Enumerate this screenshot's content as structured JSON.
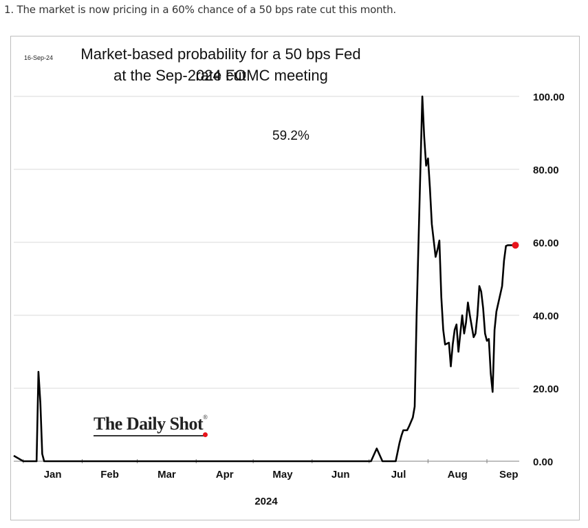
{
  "caption": "1. The market is now pricing in a 60% chance of a 50 bps rate cut this month.",
  "chart_data": {
    "type": "line",
    "date_stamp": "16-Sep-24",
    "title_lines": [
      "Market-based probability for a 50 bps Fed rate cut",
      "at the Sep-2024 FOMC meeting"
    ],
    "annotation": "59.2%",
    "watermark": "The Daily Shot",
    "xlabel": "2024",
    "x_tick_labels": [
      "Jan",
      "Feb",
      "Mar",
      "Apr",
      "May",
      "Jun",
      "Jul",
      "Aug",
      "Sep"
    ],
    "y_tick_labels": [
      "100.00",
      "80.00",
      "60.00",
      "40.00",
      "20.00",
      "0.00"
    ],
    "y_ticks": [
      100,
      80,
      60,
      40,
      20,
      0
    ],
    "ylim": [
      0,
      100
    ],
    "y_axis_side": "right",
    "grid": true,
    "line_color": "#000000",
    "marker_color": "#e8141b",
    "series": [
      {
        "x": [
          "2023-12-27",
          "2024-01-01",
          "2024-01-08",
          "2024-01-09",
          "2024-01-10",
          "2024-01-11",
          "2024-01-12",
          "2024-01-15",
          "2024-06-28",
          "2024-07-01",
          "2024-07-02",
          "2024-07-05",
          "2024-07-08",
          "2024-07-10",
          "2024-07-11",
          "2024-07-13",
          "2024-07-15",
          "2024-07-17",
          "2024-07-18",
          "2024-07-19",
          "2024-07-21",
          "2024-07-22",
          "2024-07-24",
          "2024-07-25",
          "2024-07-26",
          "2024-07-28",
          "2024-07-29",
          "2024-07-30",
          "2024-07-31",
          "2024-08-01",
          "2024-08-02",
          "2024-08-03",
          "2024-08-05",
          "2024-08-06",
          "2024-08-07",
          "2024-08-08",
          "2024-08-09",
          "2024-08-10",
          "2024-08-12",
          "2024-08-13",
          "2024-08-14",
          "2024-08-15",
          "2024-08-16",
          "2024-08-17",
          "2024-08-19",
          "2024-08-20",
          "2024-08-21",
          "2024-08-22",
          "2024-08-23",
          "2024-08-25",
          "2024-08-26",
          "2024-08-27",
          "2024-08-28",
          "2024-08-29",
          "2024-08-30",
          "2024-08-31",
          "2024-09-01",
          "2024-09-02",
          "2024-09-03",
          "2024-09-04",
          "2024-09-05",
          "2024-09-06",
          "2024-09-09",
          "2024-09-10",
          "2024-09-11",
          "2024-09-12",
          "2024-09-13",
          "2024-09-16"
        ],
        "values": [
          1.5,
          0,
          0,
          24.5,
          16,
          2,
          0,
          0,
          0,
          0,
          0,
          3.5,
          0,
          0,
          0,
          0,
          0,
          5,
          7,
          8.5,
          8.5,
          9.5,
          12,
          15,
          40,
          80,
          100,
          89,
          81,
          83,
          75,
          65,
          56,
          58,
          60.5,
          45,
          36,
          32,
          32.5,
          26,
          32,
          36,
          37.5,
          30,
          40,
          35,
          38,
          43.5,
          40,
          34,
          35,
          40,
          48,
          46.5,
          42,
          35,
          33,
          33.5,
          24,
          19,
          36,
          41,
          48,
          55,
          59,
          59.2,
          59.2,
          59.2
        ]
      }
    ]
  }
}
